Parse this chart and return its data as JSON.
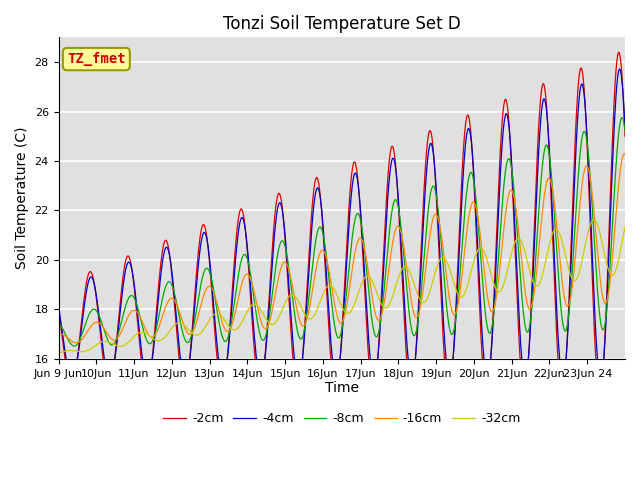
{
  "title": "Tonzi Soil Temperature Set D",
  "xlabel": "Time",
  "ylabel": "Soil Temperature (C)",
  "ylim": [
    16,
    29
  ],
  "xlim_end": 15,
  "annotation_text": "TZ_fmet",
  "legend_labels": [
    "-2cm",
    "-4cm",
    "-8cm",
    "-16cm",
    "-32cm"
  ],
  "line_colors": [
    "#dd0000",
    "#0000cc",
    "#00aa00",
    "#ff8800",
    "#cccc00"
  ],
  "background_color": "#e0e0e0",
  "title_fontsize": 12,
  "tick_fontsize": 8,
  "x_tick_labels": [
    "Jun 9 Jun",
    "10Jun",
    "11Jun",
    "12Jun",
    "13Jun",
    "14Jun",
    "15Jun",
    "16Jun",
    "17Jun",
    "18Jun",
    "19Jun",
    "20Jun",
    "21Jun",
    "22Jun",
    "23Jun 24"
  ]
}
